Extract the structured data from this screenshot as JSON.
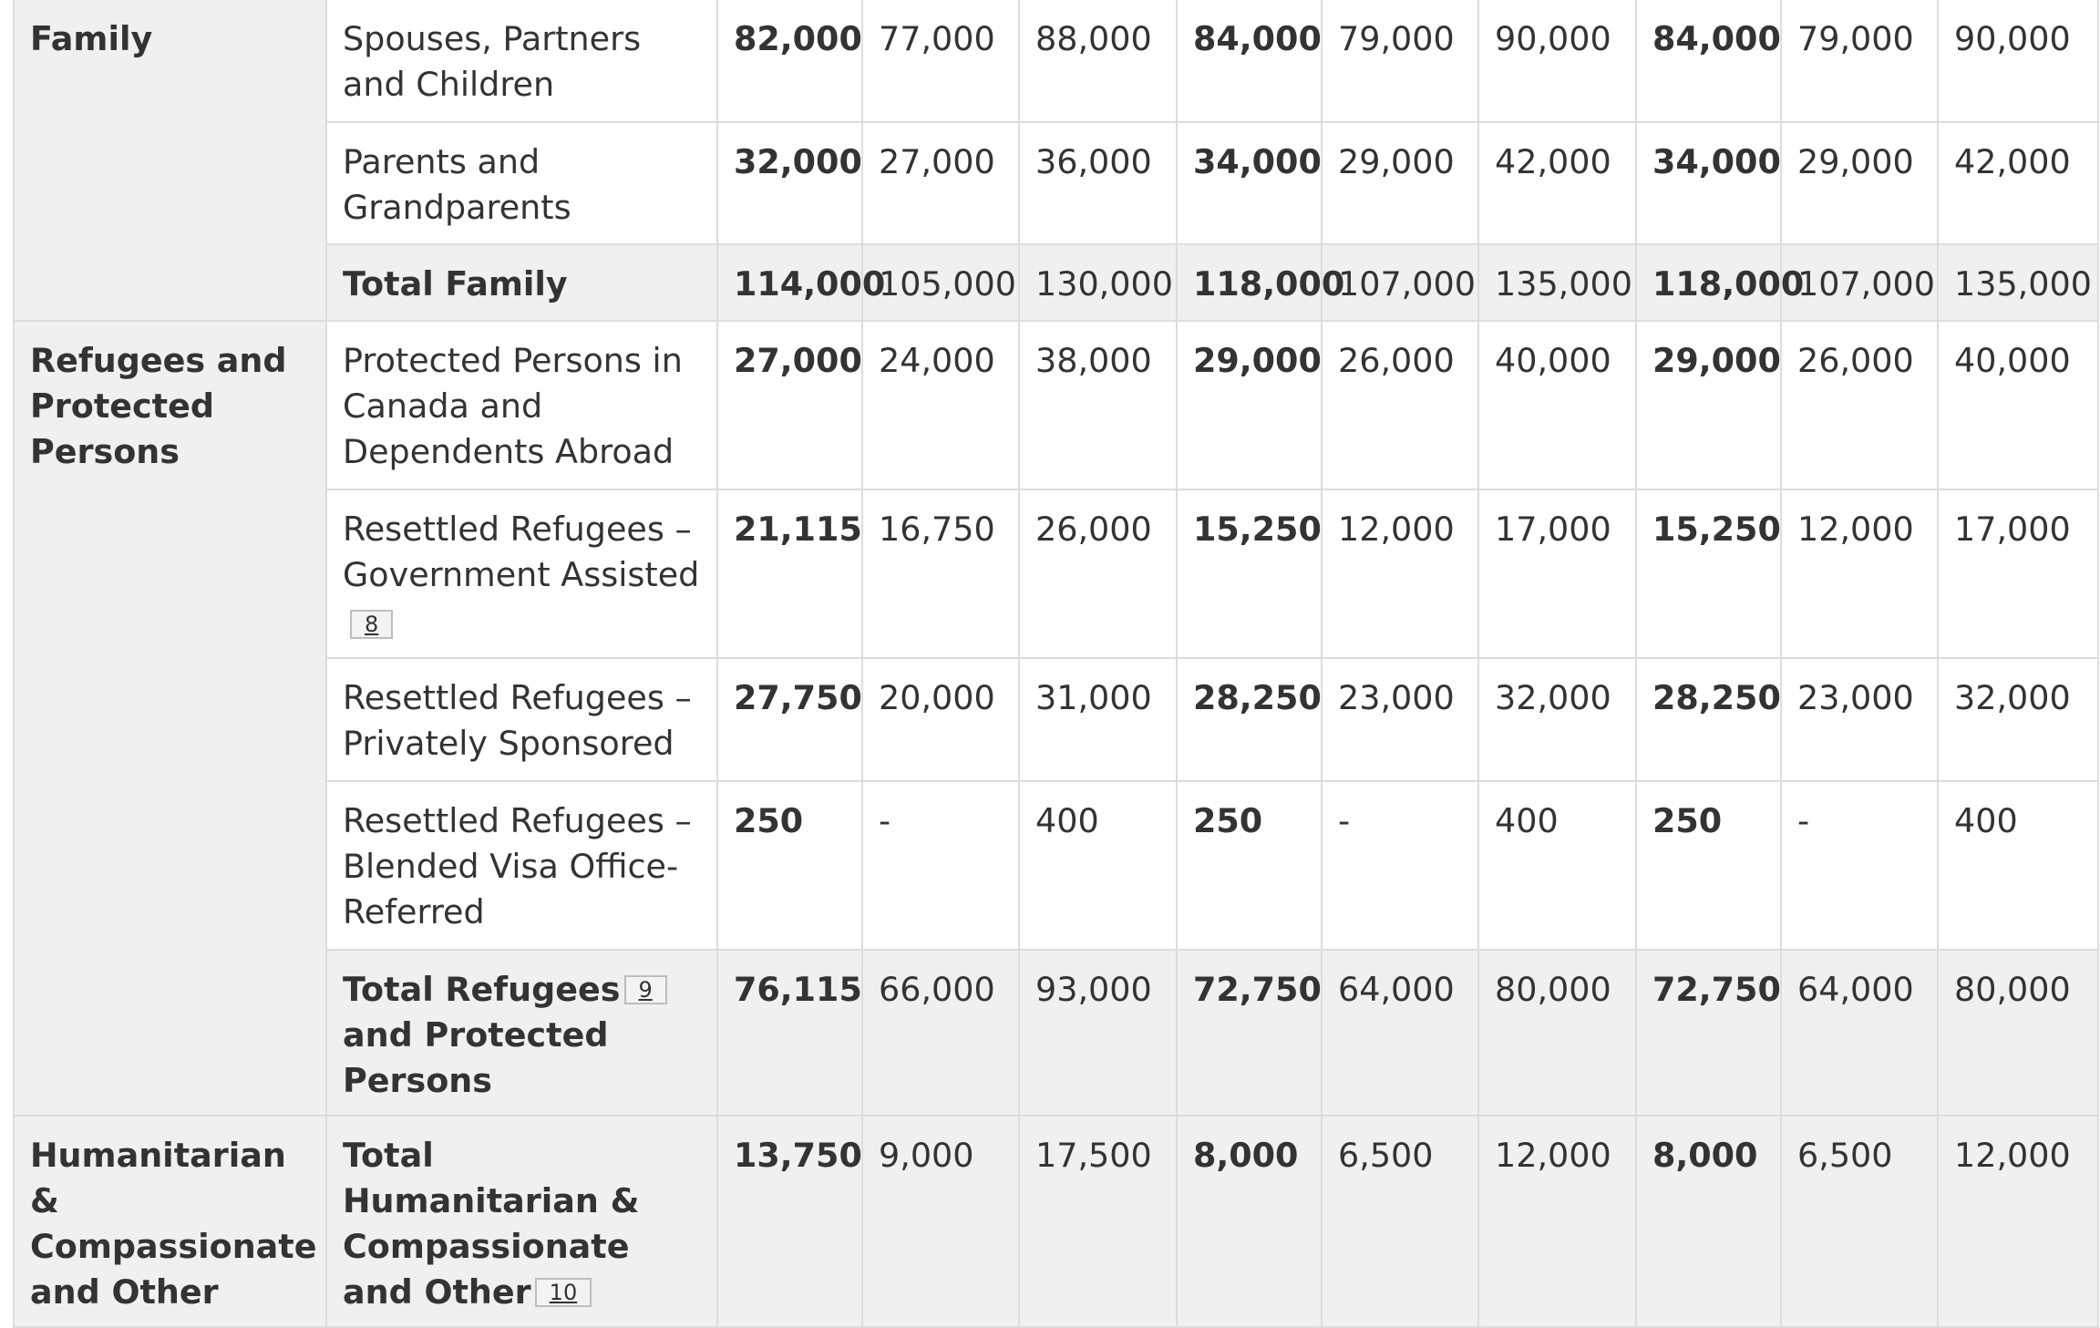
{
  "family": {
    "group": "Family",
    "rows": [
      {
        "label": "Spouses, Partners and Children",
        "values": [
          "82,000",
          "77,000",
          "88,000",
          "84,000",
          "79,000",
          "90,000",
          "84,000",
          "79,000",
          "90,000"
        ]
      },
      {
        "label": "Parents and Grandparents",
        "values": [
          "32,000",
          "27,000",
          "36,000",
          "34,000",
          "29,000",
          "42,000",
          "34,000",
          "29,000",
          "42,000"
        ]
      }
    ],
    "total": {
      "label": "Total Family",
      "values": [
        "114,000",
        "105,000",
        "130,000",
        "118,000",
        "107,000",
        "135,000",
        "118,000",
        "107,000",
        "135,000"
      ]
    }
  },
  "refugees": {
    "group": "Refugees and Protected Persons",
    "rows": [
      {
        "label": "Protected Persons in Canada and Dependents Abroad",
        "values": [
          "27,000",
          "24,000",
          "38,000",
          "29,000",
          "26,000",
          "40,000",
          "29,000",
          "26,000",
          "40,000"
        ]
      },
      {
        "label": "Resettled Refugees – Government Assisted",
        "footnote": "8",
        "values": [
          "21,115",
          "16,750",
          "26,000",
          "15,250",
          "12,000",
          "17,000",
          "15,250",
          "12,000",
          "17,000"
        ]
      },
      {
        "label": "Resettled Refugees – Privately Sponsored",
        "values": [
          "27,750",
          "20,000",
          "31,000",
          "28,250",
          "23,000",
          "32,000",
          "28,250",
          "23,000",
          "32,000"
        ]
      },
      {
        "label": "Resettled Refugees – Blended Visa Office-Referred",
        "values": [
          "250",
          "-",
          "400",
          "250",
          "-",
          "400",
          "250",
          "-",
          "400"
        ]
      }
    ],
    "total": {
      "label_before": "Total Refugees",
      "footnote": "9",
      "label_after": "and Protected Persons",
      "values": [
        "76,115",
        "66,000",
        "93,000",
        "72,750",
        "64,000",
        "80,000",
        "72,750",
        "64,000",
        "80,000"
      ]
    }
  },
  "humanitarian": {
    "group": "Humanitarian & Compassionate and Other",
    "total": {
      "label": "Total Humanitarian & Compassionate and Other",
      "footnote": "10",
      "values": [
        "13,750",
        "9,000",
        "17,500",
        "8,000",
        "6,500",
        "12,000",
        "8,000",
        "6,500",
        "12,000"
      ]
    }
  }
}
